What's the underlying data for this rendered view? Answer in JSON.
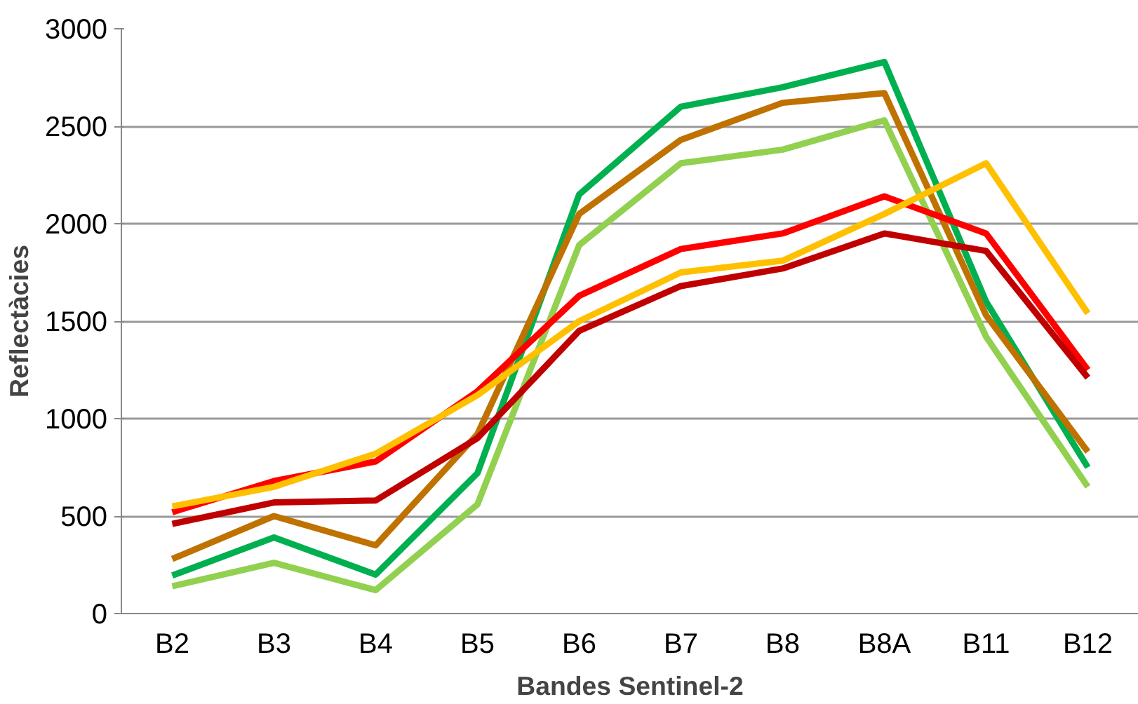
{
  "chart_data": {
    "type": "line",
    "xlabel": "Bandes Sentinel-2",
    "ylabel": "Reflectàcies",
    "categories": [
      "B2",
      "B3",
      "B4",
      "B5",
      "B6",
      "B7",
      "B8",
      "B8A",
      "B11",
      "B12"
    ],
    "series": [
      {
        "color": "#00b050",
        "values": [
          195,
          390,
          200,
          720,
          2150,
          2600,
          2700,
          2830,
          1600,
          750
        ]
      },
      {
        "color": "#bf7200",
        "values": [
          280,
          500,
          350,
          920,
          2050,
          2430,
          2620,
          2670,
          1530,
          830
        ]
      },
      {
        "color": "#92d050",
        "values": [
          140,
          260,
          120,
          560,
          1890,
          2310,
          2380,
          2530,
          1420,
          650
        ]
      },
      {
        "color": "#ff0000",
        "values": [
          520,
          680,
          780,
          1140,
          1630,
          1870,
          1950,
          2140,
          1950,
          1250
        ]
      },
      {
        "color": "#ffc000",
        "values": [
          550,
          650,
          820,
          1120,
          1500,
          1750,
          1810,
          2050,
          2310,
          1540
        ]
      },
      {
        "color": "#c00000",
        "values": [
          460,
          570,
          580,
          900,
          1450,
          1680,
          1770,
          1950,
          1860,
          1210
        ]
      }
    ],
    "ylim": [
      0,
      3000
    ],
    "yticks": [
      0,
      500,
      1000,
      1500,
      2000,
      2500,
      3000
    ],
    "grid": "y",
    "line_style": "solid"
  }
}
